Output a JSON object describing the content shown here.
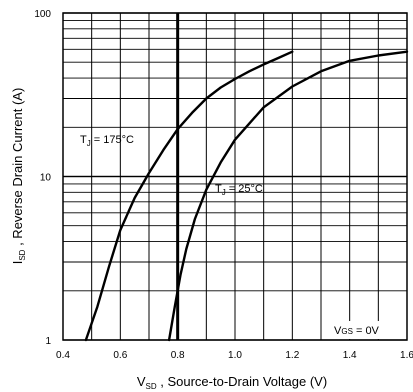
{
  "chart_data": {
    "type": "line",
    "xlabel": {
      "main": "V",
      "sub": "SD",
      "rest": " , Source-to-Drain Voltage (V)"
    },
    "ylabel": {
      "main": "I",
      "sub": "SD",
      "rest": " , Reverse Drain Current (A)"
    },
    "xlim": [
      0.4,
      1.6
    ],
    "ylim": [
      1,
      100
    ],
    "yscale": "log",
    "grid": true,
    "x_ticks": [
      0.4,
      0.6,
      0.8,
      1.0,
      1.2,
      1.4,
      1.6
    ],
    "x_tick_labels": [
      "0.4",
      "0.6",
      "0.8",
      "1.0",
      "1.2",
      "1.4",
      "1.6"
    ],
    "y_tick_labels": [
      {
        "value": 1,
        "label": "1"
      },
      {
        "value": 10,
        "label": "10"
      },
      {
        "value": 100,
        "label": "100"
      }
    ],
    "reference_line": {
      "x": 0.8
    },
    "series": [
      {
        "label": {
          "main": "T",
          "sub": "J",
          "rest": " = 175°C"
        },
        "x": [
          0.48,
          0.52,
          0.56,
          0.6,
          0.65,
          0.7,
          0.75,
          0.8,
          0.85,
          0.9,
          0.95,
          1.0,
          1.05,
          1.1,
          1.15,
          1.2
        ],
        "y": [
          1.0,
          1.6,
          2.8,
          4.7,
          7.4,
          10.5,
          14.5,
          19.5,
          24.5,
          30.0,
          35.0,
          39.5,
          44.0,
          48.5,
          53.0,
          58.0
        ]
      },
      {
        "label": {
          "main": "T",
          "sub": "J",
          "rest": " = 25°C"
        },
        "x": [
          0.77,
          0.79,
          0.81,
          0.83,
          0.86,
          0.9,
          0.95,
          1.0,
          1.1,
          1.2,
          1.3,
          1.4,
          1.5,
          1.6
        ],
        "y": [
          1.0,
          1.6,
          2.5,
          3.6,
          5.5,
          8.3,
          12.2,
          16.8,
          26.5,
          35.5,
          44.0,
          51.0,
          55.0,
          58.0
        ]
      }
    ],
    "annotation": {
      "main": "V",
      "sub": "GS",
      "rest": "  = 0V"
    }
  }
}
